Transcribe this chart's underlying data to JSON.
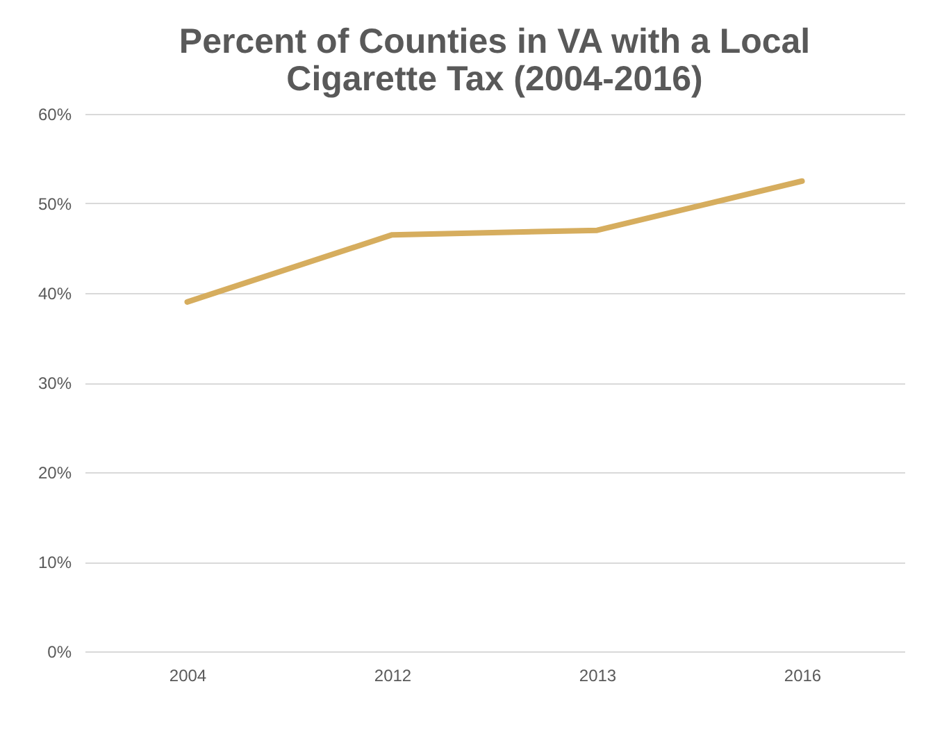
{
  "chart_data": {
    "type": "line",
    "title": "Percent of Counties in VA with a Local Cigarette Tax (2004-2016)",
    "categories": [
      "2004",
      "2012",
      "2013",
      "2016"
    ],
    "series": [
      {
        "color": "#d6ad5e",
        "values": [
          39,
          46.5,
          47,
          52.5
        ]
      }
    ],
    "ylim": [
      0,
      60
    ],
    "yticks": [
      {
        "value": 0,
        "label": "0%"
      },
      {
        "value": 10,
        "label": "10%"
      },
      {
        "value": 20,
        "label": "20%"
      },
      {
        "value": 30,
        "label": "30%"
      },
      {
        "value": 40,
        "label": "40%"
      },
      {
        "value": 50,
        "label": "50%"
      },
      {
        "value": 60,
        "label": "60%"
      }
    ],
    "grid": "y",
    "marker": "none",
    "line_style": "solid"
  }
}
